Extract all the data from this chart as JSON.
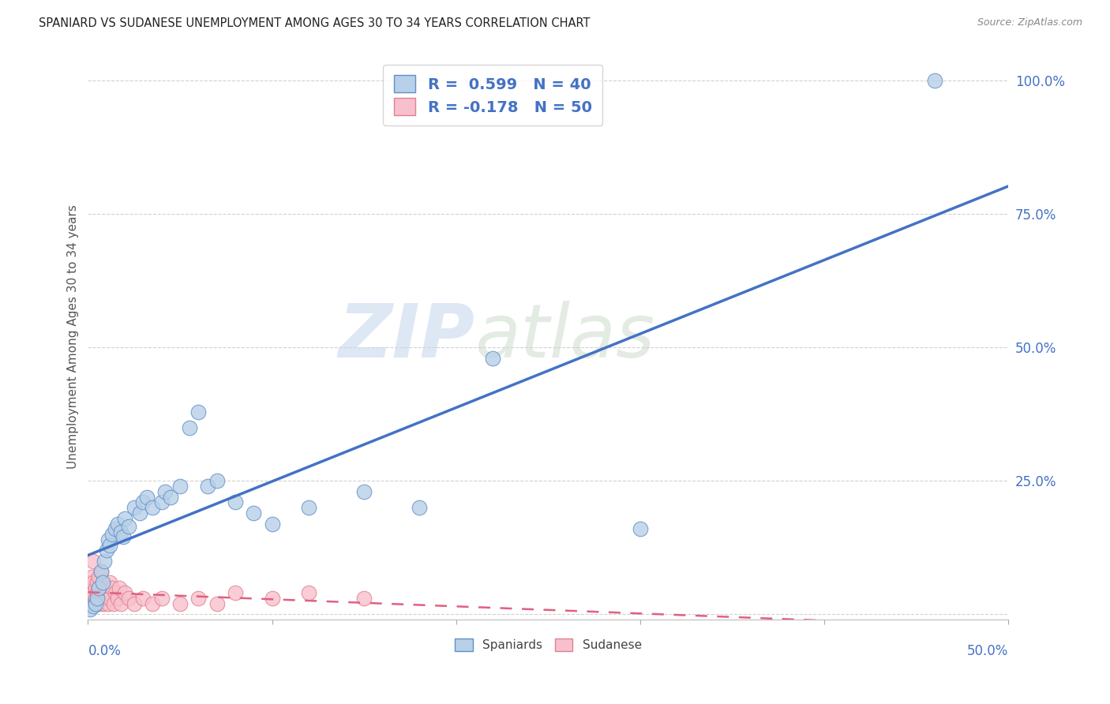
{
  "title": "SPANIARD VS SUDANESE UNEMPLOYMENT AMONG AGES 30 TO 34 YEARS CORRELATION CHART",
  "source": "Source: ZipAtlas.com",
  "ylabel": "Unemployment Among Ages 30 to 34 years",
  "xlim": [
    0,
    0.5
  ],
  "ylim": [
    -0.01,
    1.05
  ],
  "spaniards_r": 0.599,
  "spaniards_n": 40,
  "sudanese_r": -0.178,
  "sudanese_n": 50,
  "blue_color": "#b8d0e8",
  "blue_edge_color": "#6090c8",
  "blue_line_color": "#4472C4",
  "pink_color": "#f8c0cc",
  "pink_edge_color": "#e08090",
  "pink_line_color": "#e06080",
  "watermark_zip": "ZIP",
  "watermark_atlas": "atlas",
  "spaniards_x": [
    0.001,
    0.003,
    0.004,
    0.005,
    0.006,
    0.007,
    0.008,
    0.009,
    0.01,
    0.011,
    0.012,
    0.013,
    0.015,
    0.016,
    0.018,
    0.019,
    0.02,
    0.022,
    0.025,
    0.028,
    0.03,
    0.032,
    0.035,
    0.04,
    0.042,
    0.045,
    0.05,
    0.055,
    0.06,
    0.065,
    0.07,
    0.08,
    0.09,
    0.1,
    0.12,
    0.15,
    0.18,
    0.22,
    0.3,
    0.46
  ],
  "spaniards_y": [
    0.01,
    0.015,
    0.02,
    0.03,
    0.05,
    0.08,
    0.06,
    0.1,
    0.12,
    0.14,
    0.13,
    0.15,
    0.16,
    0.17,
    0.155,
    0.145,
    0.18,
    0.165,
    0.2,
    0.19,
    0.21,
    0.22,
    0.2,
    0.21,
    0.23,
    0.22,
    0.24,
    0.35,
    0.38,
    0.24,
    0.25,
    0.21,
    0.19,
    0.17,
    0.2,
    0.23,
    0.2,
    0.48,
    0.16,
    1.0
  ],
  "sudanese_x": [
    0.001,
    0.001,
    0.001,
    0.002,
    0.002,
    0.002,
    0.003,
    0.003,
    0.003,
    0.004,
    0.004,
    0.005,
    0.005,
    0.005,
    0.006,
    0.006,
    0.006,
    0.007,
    0.007,
    0.008,
    0.008,
    0.009,
    0.009,
    0.01,
    0.01,
    0.011,
    0.011,
    0.012,
    0.012,
    0.013,
    0.014,
    0.015,
    0.016,
    0.017,
    0.018,
    0.02,
    0.022,
    0.025,
    0.03,
    0.035,
    0.04,
    0.05,
    0.06,
    0.07,
    0.08,
    0.1,
    0.12,
    0.15,
    0.007,
    0.003
  ],
  "sudanese_y": [
    0.02,
    0.04,
    0.06,
    0.03,
    0.05,
    0.07,
    0.02,
    0.04,
    0.06,
    0.03,
    0.05,
    0.02,
    0.04,
    0.06,
    0.03,
    0.05,
    0.07,
    0.02,
    0.04,
    0.03,
    0.05,
    0.02,
    0.04,
    0.03,
    0.05,
    0.02,
    0.04,
    0.06,
    0.03,
    0.05,
    0.02,
    0.04,
    0.03,
    0.05,
    0.02,
    0.04,
    0.03,
    0.02,
    0.03,
    0.02,
    0.03,
    0.02,
    0.03,
    0.02,
    0.04,
    0.03,
    0.04,
    0.03,
    0.08,
    0.1
  ]
}
